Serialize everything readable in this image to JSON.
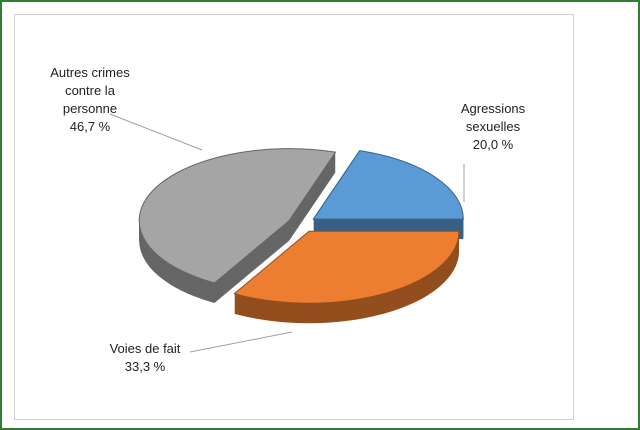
{
  "chart_data": {
    "type": "pie",
    "categories": [
      "Agressions sexuelles",
      "Voies de fait",
      "Autres crimes contre la personne"
    ],
    "values": [
      20.0,
      33.3,
      46.7
    ],
    "value_labels": [
      "20,0 %",
      "33,3 %",
      "46,7 %"
    ],
    "colors": [
      "#5b9bd5",
      "#ed7d31",
      "#a5a5a5"
    ]
  }
}
